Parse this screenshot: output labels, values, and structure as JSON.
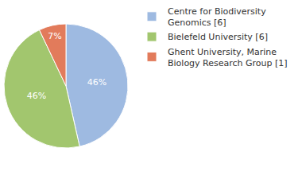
{
  "chart_data": {
    "type": "pie",
    "categories": [
      "Centre for Biodiversity Genomics [6]",
      "Bielefeld University [6]",
      "Ghent University, Marine Biology Research Group [1]"
    ],
    "values": [
      46,
      46,
      7
    ],
    "value_labels": [
      "46%",
      "46%",
      "7%"
    ],
    "colors": [
      "#9ebae1",
      "#a2c66e",
      "#e27b5b"
    ],
    "data_labels": true,
    "legend": "right"
  }
}
